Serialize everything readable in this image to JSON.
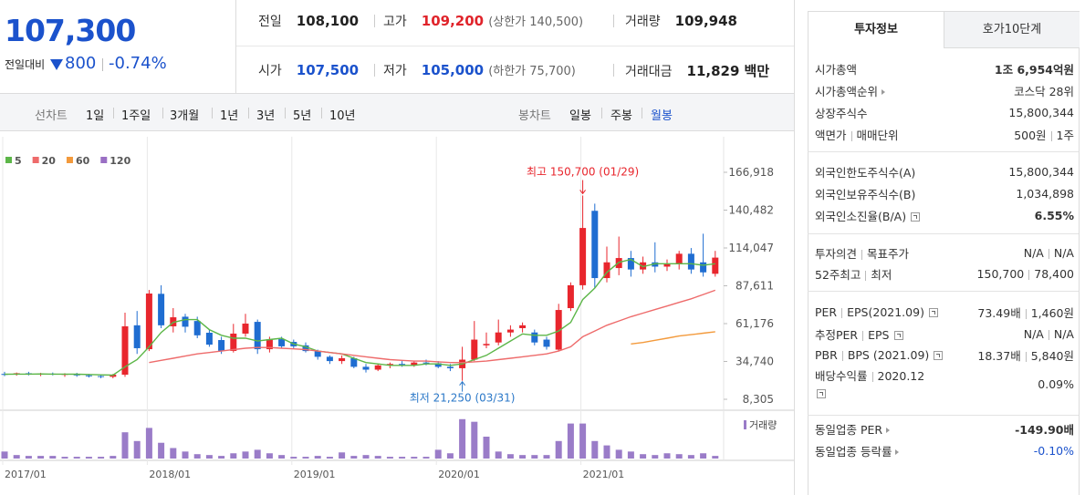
{
  "quote": {
    "price": "107,300",
    "change_label": "전일대비",
    "change": "800",
    "change_rate": "-0.74%"
  },
  "summary": [
    {
      "label": "전일",
      "value": "108,100"
    },
    {
      "label": "고가",
      "value": "109,200",
      "note": "(상한가 140,500)"
    },
    {
      "label": "거래량",
      "value": "109,948"
    },
    {
      "label": "시가",
      "value": "107,500"
    },
    {
      "label": "저가",
      "value": "105,000",
      "note": "(하한가 75,700)"
    },
    {
      "label": "거래대금",
      "value": "11,829",
      "unit": "백만"
    }
  ],
  "toolbar": {
    "line_chart": "선차트",
    "line_periods": [
      "1일",
      "1주일",
      "3개월",
      "1년",
      "3년",
      "5년",
      "10년"
    ],
    "candle_chart": "봉차트",
    "candle_periods": [
      "일봉",
      "주봉",
      "월봉"
    ]
  },
  "chart_data": {
    "type": "candlestick",
    "categories": [
      "2017/01",
      null,
      null,
      null,
      null,
      null,
      null,
      null,
      null,
      null,
      null,
      null,
      "2018/01",
      null,
      null,
      null,
      null,
      null,
      null,
      null,
      null,
      null,
      null,
      null,
      "2019/01",
      null,
      null,
      null,
      null,
      null,
      null,
      null,
      null,
      null,
      null,
      null,
      "2020/01",
      null,
      null,
      null,
      null,
      null,
      null,
      null,
      null,
      null,
      null,
      null,
      "2021/01",
      null,
      null,
      null,
      null,
      null,
      null,
      null,
      null,
      null,
      null,
      null
    ],
    "open": [
      26000,
      25500,
      26500,
      25800,
      26200,
      25500,
      26000,
      25000,
      24500,
      24000,
      25500,
      60000,
      43300,
      82000,
      59300,
      66000,
      63000,
      54800,
      49700,
      42100,
      54200,
      62400,
      43300,
      50300,
      48400,
      46000,
      42000,
      38000,
      35000,
      37000,
      31000,
      29000,
      32000,
      33000,
      32000,
      34000,
      33500,
      31000,
      30000,
      36000,
      46000,
      48000,
      55000,
      58000,
      55000,
      50000,
      43000,
      72000,
      88000,
      140000,
      93000,
      100000,
      107000,
      99000,
      104000,
      101000,
      103000,
      110000,
      104000,
      96000
    ],
    "high": [
      27500,
      27000,
      27500,
      26800,
      27000,
      26500,
      26800,
      26000,
      25500,
      26000,
      68800,
      70000,
      84700,
      88000,
      72000,
      68000,
      66000,
      57000,
      52000,
      61000,
      68000,
      64000,
      52000,
      52000,
      50000,
      48000,
      43000,
      39000,
      39000,
      38000,
      33000,
      33000,
      34000,
      35000,
      35000,
      36000,
      35000,
      33000,
      45000,
      63000,
      55000,
      64000,
      60000,
      62000,
      57000,
      52000,
      75000,
      90000,
      150700,
      145000,
      115000,
      122000,
      112000,
      108000,
      118000,
      106000,
      112000,
      114000,
      124000,
      112000
    ],
    "low": [
      24500,
      24800,
      25000,
      24500,
      25000,
      24000,
      24000,
      23500,
      23000,
      23000,
      24000,
      40000,
      42000,
      58000,
      55000,
      55000,
      51000,
      45000,
      40000,
      41000,
      52000,
      40000,
      41000,
      44000,
      44000,
      41000,
      36000,
      33000,
      33000,
      30000,
      27000,
      28000,
      30000,
      31000,
      31000,
      32000,
      30000,
      28000,
      21250,
      35000,
      44000,
      46000,
      52000,
      55000,
      46000,
      43000,
      42000,
      70000,
      85000,
      86000,
      90000,
      95000,
      94000,
      96000,
      97000,
      98000,
      99000,
      96000,
      94000,
      94000
    ],
    "close": [
      25500,
      26500,
      25800,
      26200,
      25500,
      26000,
      25000,
      24500,
      24000,
      25500,
      59300,
      44000,
      82200,
      60000,
      65600,
      59000,
      53000,
      46500,
      42100,
      54200,
      61200,
      43300,
      50300,
      45300,
      45300,
      42000,
      38000,
      35000,
      37000,
      31000,
      29000,
      32000,
      33000,
      32000,
      34000,
      33500,
      31000,
      30000,
      36000,
      50000,
      47000,
      55000,
      57000,
      60000,
      48000,
      45000,
      70700,
      88000,
      128000,
      93000,
      104000,
      107000,
      99000,
      104000,
      101000,
      103000,
      110000,
      99000,
      97000,
      107300
    ],
    "up_color": "#e8262d",
    "down_color": "#1f6dd1",
    "ylim": [
      8305,
      166918
    ],
    "yticks": [
      {
        "value": 8305,
        "label": "8,305"
      },
      {
        "value": 34740,
        "label": "34,740"
      },
      {
        "value": 61176,
        "label": "61,176"
      },
      {
        "value": 87611,
        "label": "87,611"
      },
      {
        "value": 114047,
        "label": "114,047"
      },
      {
        "value": 140482,
        "label": "140,482"
      },
      {
        "value": 166918,
        "label": "166,918"
      }
    ],
    "moving_averages": [
      {
        "name": "5",
        "color": "#5cb648",
        "values": [
          25800,
          25900,
          25900,
          26000,
          25900,
          25900,
          25800,
          25600,
          25400,
          25200,
          31000,
          36000,
          45000,
          55000,
          62000,
          64000,
          64000,
          57000,
          53000,
          51000,
          51000,
          49000,
          50000,
          51000,
          47000,
          45000,
          42000,
          41000,
          40000,
          37000,
          34000,
          33000,
          32000,
          32000,
          32000,
          33000,
          33000,
          32000,
          33000,
          36000,
          39000,
          44000,
          49000,
          54000,
          53000,
          53000,
          56000,
          62000,
          78000,
          86000,
          97000,
          104000,
          106000,
          101000,
          103000,
          103000,
          103000,
          103000,
          102000,
          103000
        ]
      },
      {
        "name": "20",
        "color": "#ee6b6b",
        "values": [
          null,
          null,
          null,
          null,
          null,
          null,
          null,
          null,
          null,
          null,
          null,
          null,
          34000,
          35500,
          37000,
          38500,
          40000,
          41000,
          42000,
          43000,
          44000,
          44500,
          44500,
          44000,
          43500,
          43000,
          42000,
          41000,
          40000,
          39000,
          38000,
          37000,
          36000,
          35500,
          35000,
          35000,
          34500,
          34000,
          34000,
          34500,
          35000,
          36000,
          37000,
          38000,
          39000,
          40000,
          42000,
          45000,
          52000,
          56000,
          60000,
          63000,
          66000,
          68500,
          71000,
          73500,
          76000,
          78500,
          81500,
          84500
        ]
      },
      {
        "name": "60",
        "color": "#f39a3c",
        "values": [
          null,
          null,
          null,
          null,
          null,
          null,
          null,
          null,
          null,
          null,
          null,
          null,
          null,
          null,
          null,
          null,
          null,
          null,
          null,
          null,
          null,
          null,
          null,
          null,
          null,
          null,
          null,
          null,
          null,
          null,
          null,
          null,
          null,
          null,
          null,
          null,
          null,
          null,
          null,
          null,
          null,
          null,
          null,
          null,
          null,
          null,
          null,
          null,
          null,
          null,
          null,
          null,
          47000,
          48000,
          49500,
          51000,
          52500,
          53500,
          54500,
          55500
        ]
      },
      {
        "name": "120",
        "color": "#9a6fc4",
        "values": [
          null,
          null,
          null,
          null,
          null,
          null,
          null,
          null,
          null,
          null,
          null,
          null,
          null,
          null,
          null,
          null,
          null,
          null,
          null,
          null,
          null,
          null,
          null,
          null,
          null,
          null,
          null,
          null,
          null,
          null,
          null,
          null,
          null,
          null,
          null,
          null,
          null,
          null,
          null,
          null,
          null,
          null,
          null,
          null,
          null,
          null,
          null,
          null,
          null,
          null,
          null,
          null,
          null,
          null,
          null,
          null,
          null,
          null,
          null,
          null
        ]
      }
    ],
    "volume": {
      "name": "거래량",
      "color": "#9a7cc8",
      "ylim": [
        0,
        50
      ],
      "values": [
        8,
        4,
        3,
        3,
        3,
        2,
        2,
        2,
        2,
        3,
        30,
        20,
        35,
        18,
        12,
        8,
        5,
        4,
        3,
        6,
        8,
        10,
        6,
        4,
        2,
        2,
        3,
        2,
        7,
        3,
        4,
        3,
        2,
        2,
        2,
        2,
        10,
        6,
        45,
        42,
        25,
        8,
        5,
        4,
        4,
        4,
        20,
        40,
        40,
        20,
        15,
        10,
        8,
        5,
        4,
        6,
        5,
        4,
        6,
        3
      ]
    },
    "annotations": [
      {
        "text": "최고 150,700 (01/29)",
        "value": 150700,
        "color": "#e8262d"
      },
      {
        "text": "최저 21,250 (03/31)",
        "value": 21250,
        "color": "#2b78c8"
      }
    ]
  },
  "invest": {
    "tabs": [
      "투자정보",
      "호가10단계"
    ],
    "sections": [
      {
        "rows": [
          {
            "labels": [
              "시가총액"
            ],
            "values": [
              "1조 6,954억원"
            ]
          },
          {
            "labels": [
              "시가총액순위"
            ],
            "values": [
              "코스닥 28위"
            ]
          },
          {
            "labels": [
              "상장주식수"
            ],
            "values": [
              "15,800,344"
            ]
          },
          {
            "labels": [
              "액면가",
              "매매단위"
            ],
            "values": [
              "500원",
              "1주"
            ]
          }
        ]
      },
      {
        "rows": [
          {
            "labels": [
              "외국인한도주식수(A)"
            ],
            "values": [
              "15,800,344"
            ]
          },
          {
            "labels": [
              "외국인보유주식수(B)"
            ],
            "values": [
              "1,034,898"
            ]
          },
          {
            "labels": [
              "외국인소진율(B/A)"
            ],
            "values": [
              "6.55%"
            ]
          }
        ]
      },
      {
        "rows": [
          {
            "labels": [
              "투자의견",
              "목표주가"
            ],
            "values": [
              "N/A",
              "N/A"
            ]
          },
          {
            "labels": [
              "52주최고",
              "최저"
            ],
            "values": [
              "150,700",
              "78,400"
            ]
          }
        ]
      },
      {
        "rows": [
          {
            "labels": [
              "PER",
              "EPS(2021.09)"
            ],
            "values": [
              "73.49배",
              "1,460원"
            ]
          },
          {
            "labels": [
              "추정PER",
              "EPS"
            ],
            "values": [
              "N/A",
              "N/A"
            ]
          },
          {
            "labels": [
              "PBR",
              "BPS (2021.09)"
            ],
            "values": [
              "18.37배",
              "5,840원"
            ]
          },
          {
            "labels": [
              "배당수익률",
              "2020.12"
            ],
            "values": [
              "0.09%"
            ]
          }
        ]
      },
      {
        "rows": [
          {
            "labels": [
              "동일업종 PER"
            ],
            "values": [
              "-149.90배"
            ]
          },
          {
            "labels": [
              "동일업종 등락률"
            ],
            "values": [
              "-0.10%"
            ]
          }
        ]
      }
    ]
  }
}
